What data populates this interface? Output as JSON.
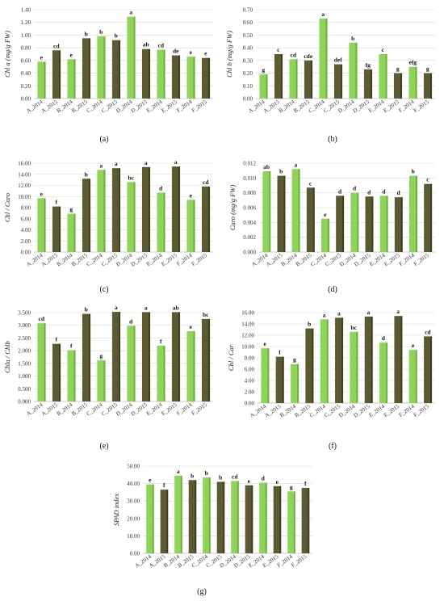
{
  "colors": {
    "light": "#8fd45a",
    "light_side": "#6fae3c",
    "dark": "#5b5a32",
    "dark_side": "#3f3e20",
    "grid": "#d9d9d9"
  },
  "categories": [
    "A_2014",
    "A_2015",
    "B_2014",
    "B_2015",
    "C_2014",
    "C_2015",
    "D_2014",
    "D_2015",
    "E_2014",
    "E_2015",
    "F_2014",
    "F_2015"
  ],
  "captions": {
    "a": "(a)",
    "b": "(b)",
    "c": "(c)",
    "d": "(d)",
    "e": "(e)",
    "f": "(f)",
    "g": "(g)"
  },
  "chart_data": [
    {
      "id": "a",
      "type": "bar",
      "ylabel": "Chl a (mg/g FW)",
      "ylim": [
        0,
        1.4
      ],
      "yticks": [
        "0.00",
        "0.20",
        "0.40",
        "0.60",
        "0.80",
        "1.00",
        "1.20",
        "1.40"
      ],
      "values": [
        0.58,
        0.76,
        0.62,
        0.95,
        0.98,
        0.92,
        1.29,
        0.78,
        0.77,
        0.68,
        0.66,
        0.64
      ],
      "letters": [
        "e",
        "cd",
        "e",
        "b",
        "b",
        "b",
        "a",
        "ab",
        "cd",
        "de",
        "e",
        "e"
      ]
    },
    {
      "id": "b",
      "type": "bar",
      "ylabel": "Chl b (mg/g FW)",
      "ylim": [
        0,
        0.7
      ],
      "yticks": [
        "0.00",
        "0.10",
        "0.20",
        "0.30",
        "0.40",
        "0.50",
        "0.60",
        "0.70"
      ],
      "values": [
        0.19,
        0.35,
        0.31,
        0.3,
        0.63,
        0.27,
        0.44,
        0.23,
        0.35,
        0.2,
        0.25,
        0.2
      ],
      "letters": [
        "g",
        "c",
        "cd",
        "cde",
        "a",
        "def",
        "b",
        "fg",
        "c",
        "g",
        "efg",
        "g"
      ]
    },
    {
      "id": "c",
      "type": "bar",
      "ylabel": "Chl / Caro",
      "ylim": [
        0,
        16
      ],
      "yticks": [
        "0.00",
        "2.00",
        "4.00",
        "6.00",
        "8.00",
        "10.00",
        "12.00",
        "14.00",
        "16.00"
      ],
      "values": [
        9.7,
        8.2,
        6.9,
        13.2,
        14.8,
        15.1,
        12.6,
        15.3,
        10.7,
        15.4,
        9.4,
        11.8
      ],
      "letters": [
        "e",
        "f",
        "g",
        "b",
        "a",
        "a",
        "bc",
        "a",
        "d",
        "a",
        "e",
        "cd"
      ]
    },
    {
      "id": "d",
      "type": "bar",
      "ylabel": "Caro (mg/g FW)",
      "ylim": [
        0,
        0.012
      ],
      "yticks": [
        "0.000",
        "0.002",
        "0.004",
        "0.006",
        "0.008",
        "0.010",
        "0.012"
      ],
      "values": [
        0.0109,
        0.0103,
        0.0112,
        0.0087,
        0.0045,
        0.0076,
        0.008,
        0.0075,
        0.0076,
        0.0074,
        0.0103,
        0.0092
      ],
      "letters": [
        "ab",
        "b",
        "a",
        "c",
        "e",
        "d",
        "d",
        "d",
        "d",
        "d",
        "b",
        "c"
      ]
    },
    {
      "id": "e",
      "type": "bar",
      "ylabel": "Chla / Chlb",
      "ylim": [
        0,
        3.5
      ],
      "yticks": [
        "0.000",
        "0.500",
        "1.000",
        "1.500",
        "2.000",
        "2.500",
        "3.000",
        "3.500"
      ],
      "values": [
        3.08,
        2.27,
        2.02,
        3.45,
        1.62,
        3.53,
        2.98,
        3.52,
        2.2,
        3.52,
        2.77,
        3.25
      ],
      "letters": [
        "cd",
        "f",
        "f",
        "b",
        "g",
        "a",
        "d",
        "a",
        "f",
        "ab",
        "e",
        "bc"
      ]
    },
    {
      "id": "f",
      "type": "bar",
      "ylabel": "Chl / Car",
      "ylim": [
        0,
        16
      ],
      "yticks": [
        "0.00",
        "2.00",
        "4.00",
        "6.00",
        "8.00",
        "10.00",
        "12.00",
        "14.00",
        "16.00"
      ],
      "values": [
        9.7,
        8.2,
        6.9,
        13.2,
        14.8,
        15.1,
        12.6,
        15.3,
        10.7,
        15.4,
        9.4,
        11.8
      ],
      "letters": [
        "e",
        "f",
        "g",
        "b",
        "a",
        "a",
        "bc",
        "a",
        "d",
        "a",
        "e",
        "cd"
      ]
    },
    {
      "id": "g",
      "type": "bar",
      "ylabel": "SPAD index",
      "ylim": [
        0,
        50
      ],
      "yticks": [
        "0.00",
        "10.00",
        "20.00",
        "30.00",
        "40.00",
        "50.00"
      ],
      "values": [
        39.5,
        36.5,
        44.5,
        42.0,
        43.5,
        41.0,
        41.5,
        39.0,
        40.5,
        38.5,
        35.5,
        37.5
      ],
      "letters": [
        "e",
        "f",
        "a",
        "b",
        "b",
        "b",
        "cd",
        "e",
        "d",
        "e",
        "g",
        "f"
      ]
    }
  ]
}
